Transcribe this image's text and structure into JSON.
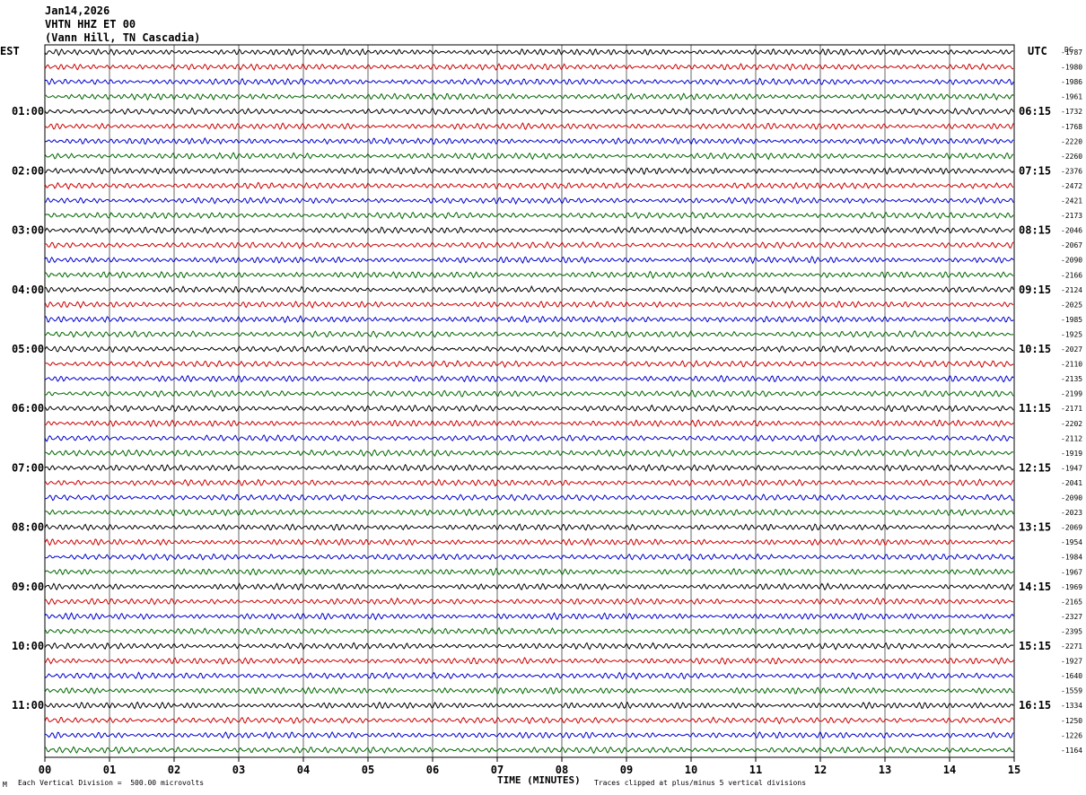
{
  "header": {
    "date": "Jan14,2026",
    "station": "VHTN HHZ ET 00",
    "location": "(Vann Hill, TN Cascadia)"
  },
  "left_tz": "EST",
  "right_tz": "UTC",
  "dc_label": "DC",
  "footer": {
    "scale_note": "Each Vertical Division =  500.00 microvolts",
    "clip_note": "Traces clipped at plus/minus 5 vertical divisions",
    "corner_mark": "M"
  },
  "colors": {
    "trace_cycle": [
      "#000000",
      "#cc0000",
      "#0000cc",
      "#006600"
    ],
    "grid": "#000000"
  },
  "chart_data": {
    "type": "line",
    "subtype": "helicorder",
    "xlabel": "TIME (MINUTES)",
    "x_ticks": [
      "00",
      "01",
      "02",
      "03",
      "04",
      "05",
      "06",
      "07",
      "08",
      "09",
      "10",
      "11",
      "12",
      "13",
      "14",
      "15"
    ],
    "xlim": [
      0,
      15
    ],
    "traces_per_hour": 4,
    "left_time_labels": [
      "01:00",
      "02:00",
      "03:00",
      "04:00",
      "05:00",
      "06:00",
      "07:00",
      "08:00",
      "09:00",
      "10:00",
      "11:00"
    ],
    "right_time_labels": [
      "06:15",
      "07:15",
      "08:15",
      "09:15",
      "10:15",
      "11:15",
      "12:15",
      "13:15",
      "14:15",
      "15:15",
      "16:15"
    ],
    "dc_offsets": [
      "-1787",
      "-1980",
      "-1986",
      "-1961",
      "-1732",
      "-1768",
      "-2220",
      "-2260",
      "-2376",
      "-2472",
      "-2421",
      "-2173",
      "-2046",
      "-2067",
      "-2090",
      "-2166",
      "-2124",
      "-2025",
      "-1985",
      "-1925",
      "-2027",
      "-2110",
      "-2135",
      "-2199",
      "-2171",
      "-2202",
      "-2112",
      "-1919",
      "-1947",
      "-2041",
      "-2090",
      "-2023",
      "-2069",
      "-1954",
      "-1984",
      "-1967",
      "-1969",
      "-2165",
      "-2327",
      "-2395",
      "-2271",
      "-1927",
      "-1640",
      "-1559",
      "-1334",
      "-1250",
      "-1226",
      "-1164"
    ],
    "trace_count": 48
  }
}
